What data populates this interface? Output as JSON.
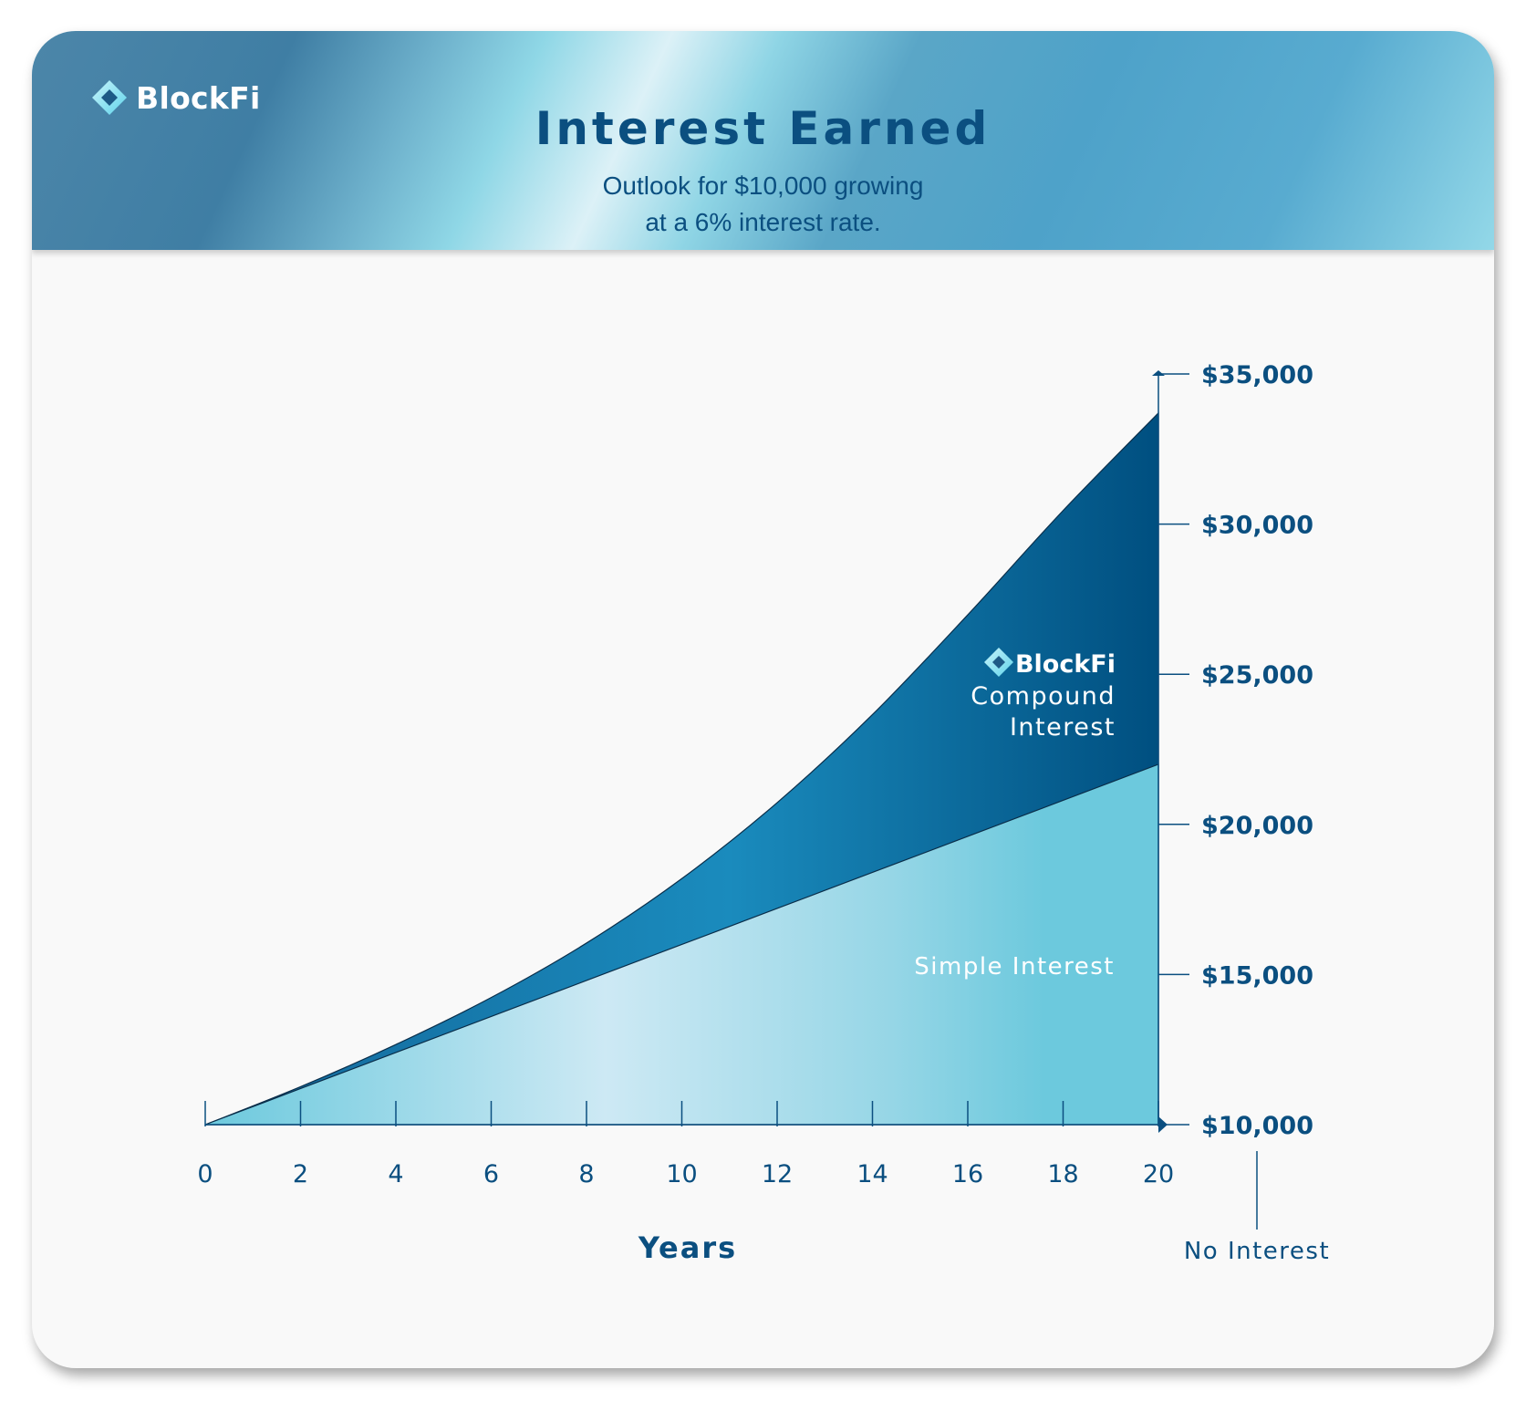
{
  "header": {
    "logo_text": "BlockFi",
    "title": "Interest Earned",
    "subtitle": "Outlook for $10,000 growing\nat a 6% interest rate."
  },
  "colors": {
    "compound_dark": "#004f80",
    "compound_mid": "#1a8bbd",
    "simple_light": "#cde9f4",
    "simple_mid": "#6cc9dd",
    "text_navy": "#0b4f80"
  },
  "icons": {
    "logo": "blockfi-diamond-icon"
  },
  "chart_data": {
    "type": "area",
    "title": "Interest Earned",
    "xlabel": "Years",
    "x": [
      0,
      2,
      4,
      6,
      8,
      10,
      12,
      14,
      16,
      18,
      20
    ],
    "xticks": [
      "0",
      "2",
      "4",
      "6",
      "8",
      "10",
      "12",
      "14",
      "16",
      "18",
      "20"
    ],
    "ylim": [
      10000,
      35000
    ],
    "yticks": [
      "$10,000",
      "$15,000",
      "$20,000",
      "$25,000",
      "$30,000",
      "$35,000"
    ],
    "ytick_values": [
      10000,
      15000,
      20000,
      25000,
      30000,
      35000
    ],
    "y_axis_side": "right",
    "series": [
      {
        "name": "BlockFi Compound Interest",
        "brand": "BlockFi",
        "label_lines": [
          "Compound",
          "Interest"
        ],
        "values": [
          10000,
          11262,
          12668,
          14233,
          16047,
          18194,
          20722,
          23655,
          26979,
          30451,
          33700
        ]
      },
      {
        "name": "Simple Interest",
        "values": [
          10000,
          11200,
          12400,
          13600,
          14800,
          16000,
          17200,
          18400,
          19600,
          20800,
          22000
        ]
      }
    ],
    "baseline_label": "No Interest"
  }
}
